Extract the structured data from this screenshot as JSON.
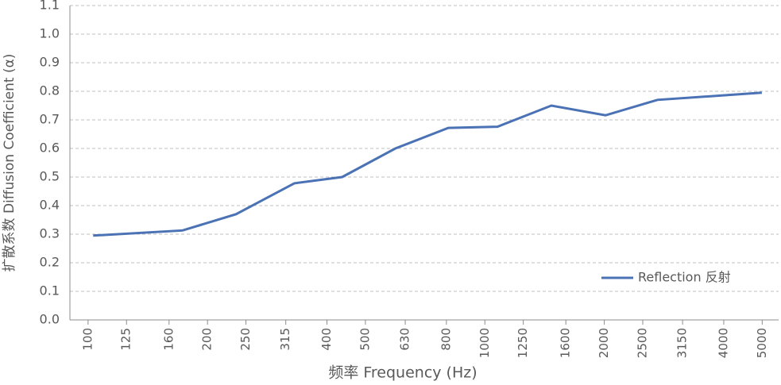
{
  "chart_data": {
    "type": "line",
    "xlabel": "频率 Frequency (Hz)",
    "ylabel": "扩散系数 Diffusion Coefficient (α)",
    "x": [
      103,
      173,
      236,
      331,
      437,
      595,
      809,
      1076,
      1471,
      2014,
      2723,
      4989
    ],
    "series": [
      {
        "name": "Reflection 反射",
        "color": "#4a72b4",
        "values": [
          0.295,
          0.313,
          0.37,
          0.478,
          0.5,
          0.6,
          0.672,
          0.676,
          0.75,
          0.716,
          0.77,
          0.795
        ]
      }
    ],
    "xscale": "log",
    "xlim": [
      90,
      5500
    ],
    "xticks": [
      100,
      125,
      160,
      200,
      250,
      315,
      400,
      500,
      630,
      800,
      1000,
      1250,
      1600,
      2000,
      2500,
      3150,
      4000,
      5000
    ],
    "ylim": [
      0,
      1.1
    ],
    "yticks": [
      {
        "value": 0,
        "label": "0.0"
      },
      0.1,
      0.2,
      0.3,
      0.4,
      0.5,
      0.6,
      0.7,
      0.8,
      0.9,
      {
        "value": 1,
        "label": "1.0"
      },
      1.1
    ],
    "grid": true,
    "legend": "lower right"
  }
}
